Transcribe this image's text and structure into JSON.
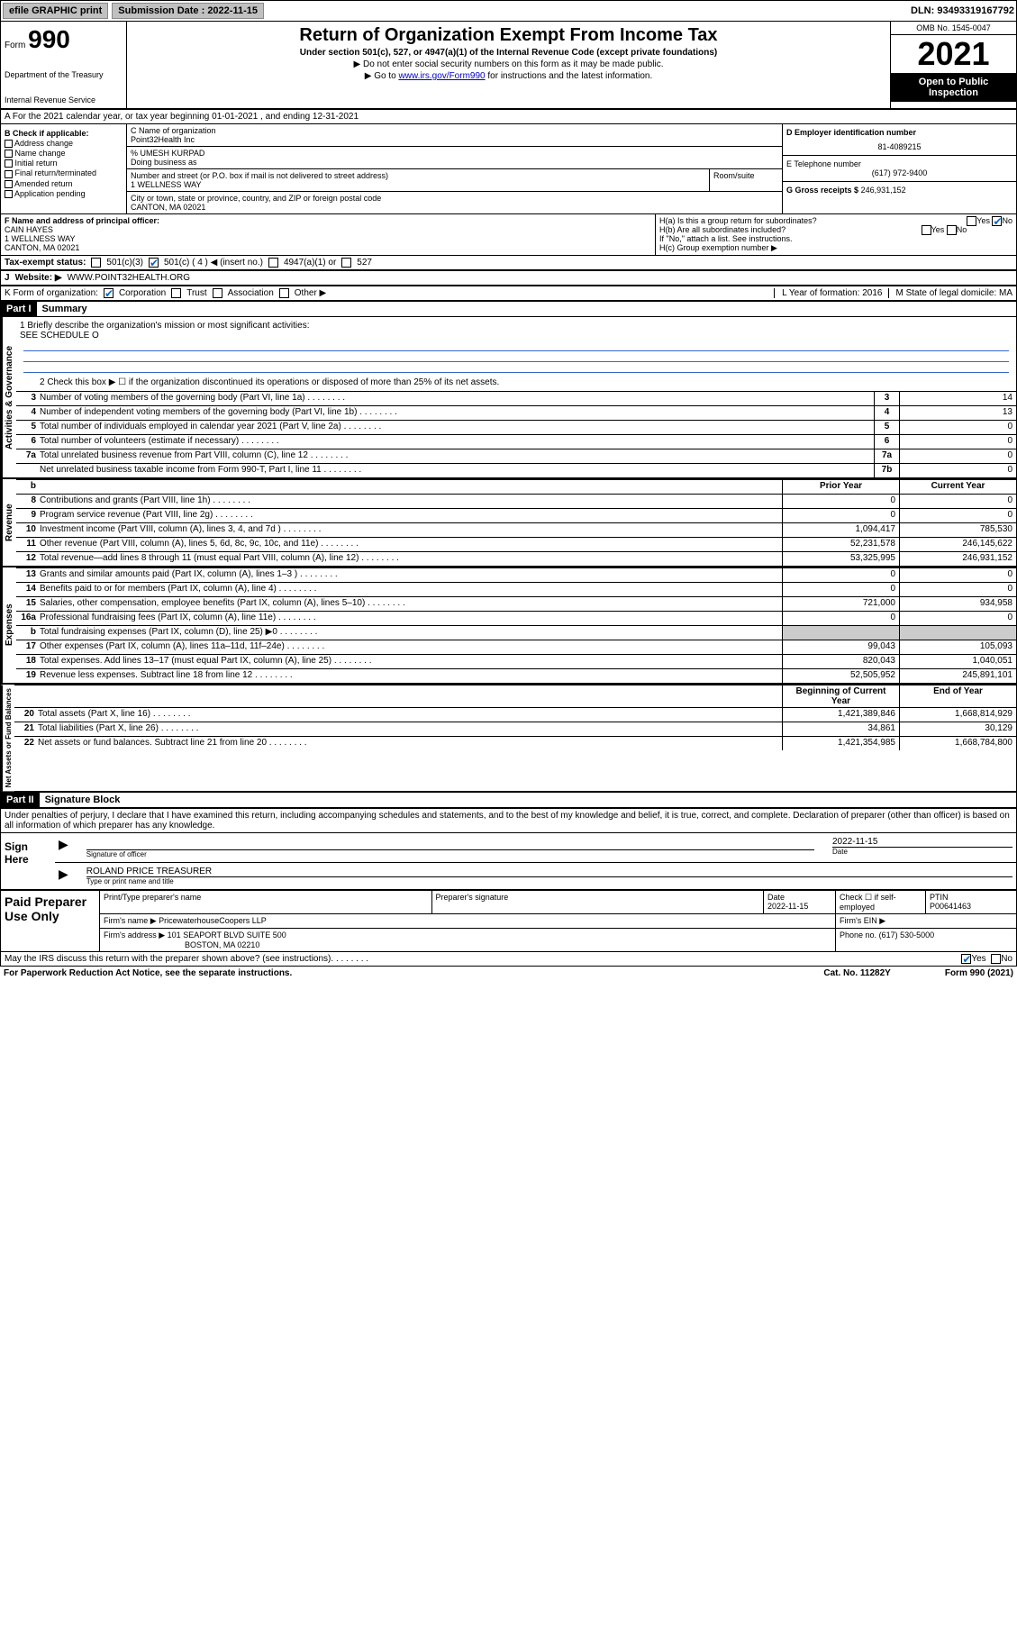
{
  "top": {
    "efile": "efile GRAPHIC print",
    "sub_label": "Submission Date : 2022-11-15",
    "dln": "DLN: 93493319167792"
  },
  "header": {
    "form_word": "Form",
    "form_num": "990",
    "title": "Return of Organization Exempt From Income Tax",
    "sub1": "Under section 501(c), 527, or 4947(a)(1) of the Internal Revenue Code (except private foundations)",
    "sub2": "▶ Do not enter social security numbers on this form as it may be made public.",
    "sub3_pre": "▶ Go to ",
    "sub3_link": "www.irs.gov/Form990",
    "sub3_post": " for instructions and the latest information.",
    "dept": "Department of the Treasury",
    "irs": "Internal Revenue Service",
    "omb": "OMB No. 1545-0047",
    "year": "2021",
    "open": "Open to Public Inspection"
  },
  "rowA": "A For the 2021 calendar year, or tax year beginning 01-01-2021   , and ending 12-31-2021",
  "colB": {
    "hdr": "B Check if applicable:",
    "items": [
      "Address change",
      "Name change",
      "Initial return",
      "Final return/terminated",
      "Amended return",
      "Application pending"
    ]
  },
  "colC": {
    "c_label": "C Name of organization",
    "name": "Point32Health Inc",
    "care": "% UMESH KURPAD",
    "dba": "Doing business as",
    "street_label": "Number and street (or P.O. box if mail is not delivered to street address)",
    "room": "Room/suite",
    "street": "1 WELLNESS WAY",
    "city_label": "City or town, state or province, country, and ZIP or foreign postal code",
    "city": "CANTON, MA  02021"
  },
  "colD": {
    "d_label": "D Employer identification number",
    "ein": "81-4089215",
    "e_label": "E Telephone number",
    "phone": "(617) 972-9400",
    "g_label": "G Gross receipts $",
    "gross": "246,931,152"
  },
  "rowF": {
    "f_label": "F Name and address of principal officer:",
    "name": "CAIN HAYES",
    "addr1": "1 WELLNESS WAY",
    "addr2": "CANTON, MA  02021",
    "ha": "H(a)  Is this a group return for subordinates?",
    "hb": "H(b)  Are all subordinates included?",
    "hb_note": "If \"No,\" attach a list. See instructions.",
    "hc": "H(c)  Group exemption number ▶",
    "yes": "Yes",
    "no": "No"
  },
  "taxStatus": {
    "label": "Tax-exempt status:",
    "c3": "501(c)(3)",
    "c": "501(c) ( 4 ) ◀ (insert no.)",
    "a1": "4947(a)(1) or",
    "s527": "527"
  },
  "rowJ": {
    "label": "J",
    "web": "Website: ▶",
    "url": "WWW.POINT32HEALTH.ORG"
  },
  "rowK": {
    "label": "K Form of organization:",
    "corp": "Corporation",
    "trust": "Trust",
    "assoc": "Association",
    "other": "Other ▶",
    "l": "L Year of formation: 2016",
    "m": "M State of legal domicile: MA"
  },
  "part1": {
    "hdr": "Part I",
    "title": "Summary"
  },
  "mission": {
    "line1": "1  Briefly describe the organization's mission or most significant activities:",
    "text": "SEE SCHEDULE O"
  },
  "govLines": {
    "l2": "2   Check this box ▶ ☐  if the organization discontinued its operations or disposed of more than 25% of its net assets.",
    "rows": [
      {
        "n": "3",
        "t": "Number of voting members of the governing body (Part VI, line 1a)",
        "box": "3",
        "v": "14"
      },
      {
        "n": "4",
        "t": "Number of independent voting members of the governing body (Part VI, line 1b)",
        "box": "4",
        "v": "13"
      },
      {
        "n": "5",
        "t": "Total number of individuals employed in calendar year 2021 (Part V, line 2a)",
        "box": "5",
        "v": "0"
      },
      {
        "n": "6",
        "t": "Total number of volunteers (estimate if necessary)",
        "box": "6",
        "v": "0"
      },
      {
        "n": "7a",
        "t": "Total unrelated business revenue from Part VIII, column (C), line 12",
        "box": "7a",
        "v": "0"
      },
      {
        "n": "",
        "t": "Net unrelated business taxable income from Form 990-T, Part I, line 11",
        "box": "7b",
        "v": "0"
      }
    ]
  },
  "twoColHdr": {
    "b": "b",
    "prior": "Prior Year",
    "curr": "Current Year"
  },
  "revenue": [
    {
      "n": "8",
      "t": "Contributions and grants (Part VIII, line 1h)",
      "p": "0",
      "c": "0"
    },
    {
      "n": "9",
      "t": "Program service revenue (Part VIII, line 2g)",
      "p": "0",
      "c": "0"
    },
    {
      "n": "10",
      "t": "Investment income (Part VIII, column (A), lines 3, 4, and 7d )",
      "p": "1,094,417",
      "c": "785,530"
    },
    {
      "n": "11",
      "t": "Other revenue (Part VIII, column (A), lines 5, 6d, 8c, 9c, 10c, and 11e)",
      "p": "52,231,578",
      "c": "246,145,622"
    },
    {
      "n": "12",
      "t": "Total revenue—add lines 8 through 11 (must equal Part VIII, column (A), line 12)",
      "p": "53,325,995",
      "c": "246,931,152"
    }
  ],
  "expenses": [
    {
      "n": "13",
      "t": "Grants and similar amounts paid (Part IX, column (A), lines 1–3 )",
      "p": "0",
      "c": "0"
    },
    {
      "n": "14",
      "t": "Benefits paid to or for members (Part IX, column (A), line 4)",
      "p": "0",
      "c": "0"
    },
    {
      "n": "15",
      "t": "Salaries, other compensation, employee benefits (Part IX, column (A), lines 5–10)",
      "p": "721,000",
      "c": "934,958"
    },
    {
      "n": "16a",
      "t": "Professional fundraising fees (Part IX, column (A), line 11e)",
      "p": "0",
      "c": "0"
    },
    {
      "n": "b",
      "t": "Total fundraising expenses (Part IX, column (D), line 25) ▶0",
      "p": "",
      "c": "",
      "shade": true
    },
    {
      "n": "17",
      "t": "Other expenses (Part IX, column (A), lines 11a–11d, 11f–24e)",
      "p": "99,043",
      "c": "105,093"
    },
    {
      "n": "18",
      "t": "Total expenses. Add lines 13–17 (must equal Part IX, column (A), line 25)",
      "p": "820,043",
      "c": "1,040,051"
    },
    {
      "n": "19",
      "t": "Revenue less expenses. Subtract line 18 from line 12",
      "p": "52,505,952",
      "c": "245,891,101"
    }
  ],
  "netHdr": {
    "beg": "Beginning of Current Year",
    "end": "End of Year"
  },
  "net": [
    {
      "n": "20",
      "t": "Total assets (Part X, line 16)",
      "p": "1,421,389,846",
      "c": "1,668,814,929"
    },
    {
      "n": "21",
      "t": "Total liabilities (Part X, line 26)",
      "p": "34,861",
      "c": "30,129"
    },
    {
      "n": "22",
      "t": "Net assets or fund balances. Subtract line 21 from line 20",
      "p": "1,421,354,985",
      "c": "1,668,784,800"
    }
  ],
  "sideLabels": {
    "gov": "Activities & Governance",
    "rev": "Revenue",
    "exp": "Expenses",
    "net": "Net Assets or Fund Balances"
  },
  "part2": {
    "hdr": "Part II",
    "title": "Signature Block"
  },
  "sig": {
    "decl": "Under penalties of perjury, I declare that I have examined this return, including accompanying schedules and statements, and to the best of my knowledge and belief, it is true, correct, and complete. Declaration of preparer (other than officer) is based on all information of which preparer has any knowledge.",
    "sign_here": "Sign Here",
    "sig_officer": "Signature of officer",
    "date": "Date",
    "date_val": "2022-11-15",
    "name": "ROLAND PRICE TREASURER",
    "name_label": "Type or print name and title"
  },
  "prep": {
    "label": "Paid Preparer Use Only",
    "h1": "Print/Type preparer's name",
    "h2": "Preparer's signature",
    "h3": "Date",
    "h3v": "2022-11-15",
    "h4": "Check ☐ if self-employed",
    "h5": "PTIN",
    "h5v": "P00641463",
    "firm_l": "Firm's name    ▶",
    "firm": "PricewaterhouseCoopers LLP",
    "ein_l": "Firm's EIN ▶",
    "addr_l": "Firm's address ▶",
    "addr": "101 SEAPORT BLVD SUITE 500",
    "addr2": "BOSTON, MA  02210",
    "phone_l": "Phone no.",
    "phone": "(617) 530-5000"
  },
  "footer": {
    "may": "May the IRS discuss this return with the preparer shown above? (see instructions)",
    "yes": "Yes",
    "no": "No",
    "pra": "For Paperwork Reduction Act Notice, see the separate instructions.",
    "cat": "Cat. No. 11282Y",
    "form": "Form 990 (2021)"
  }
}
